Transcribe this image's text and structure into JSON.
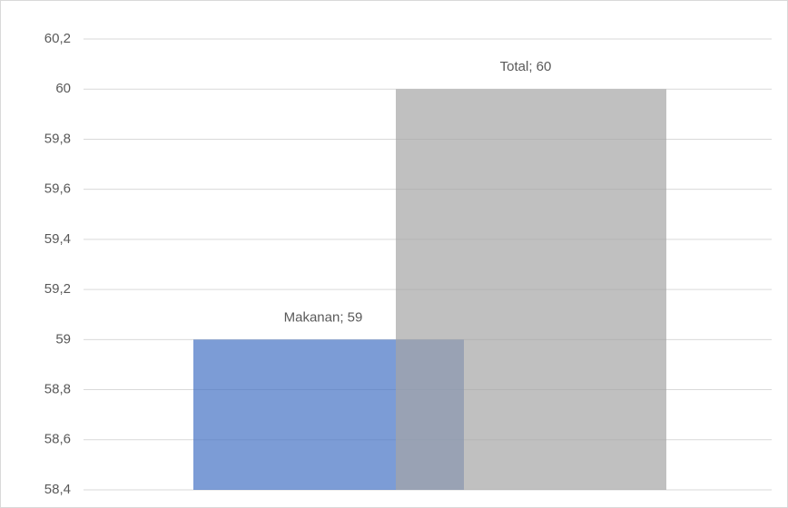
{
  "chart_data": {
    "type": "bar",
    "series": [
      {
        "name": "Makanan",
        "color": "#4472c4",
        "values": [
          59
        ],
        "value_labels": [
          "Makanan; 59"
        ]
      },
      {
        "name": "Total",
        "color": "#a5a5a5",
        "values": [
          60
        ],
        "value_labels": [
          "Total; 60"
        ]
      }
    ],
    "ylim": [
      58.4,
      60.2
    ],
    "yticks": [
      {
        "value": 58.4,
        "label": "58,4"
      },
      {
        "value": 58.6,
        "label": "58,6"
      },
      {
        "value": 58.8,
        "label": "58,8"
      },
      59,
      {
        "value": 59.2,
        "label": "59,2"
      },
      {
        "value": 59.4,
        "label": "59,4"
      },
      {
        "value": 59.6,
        "label": "59,6"
      },
      {
        "value": 59.8,
        "label": "59,8"
      },
      60,
      {
        "value": 60.2,
        "label": "60,2"
      }
    ],
    "grid": true
  }
}
